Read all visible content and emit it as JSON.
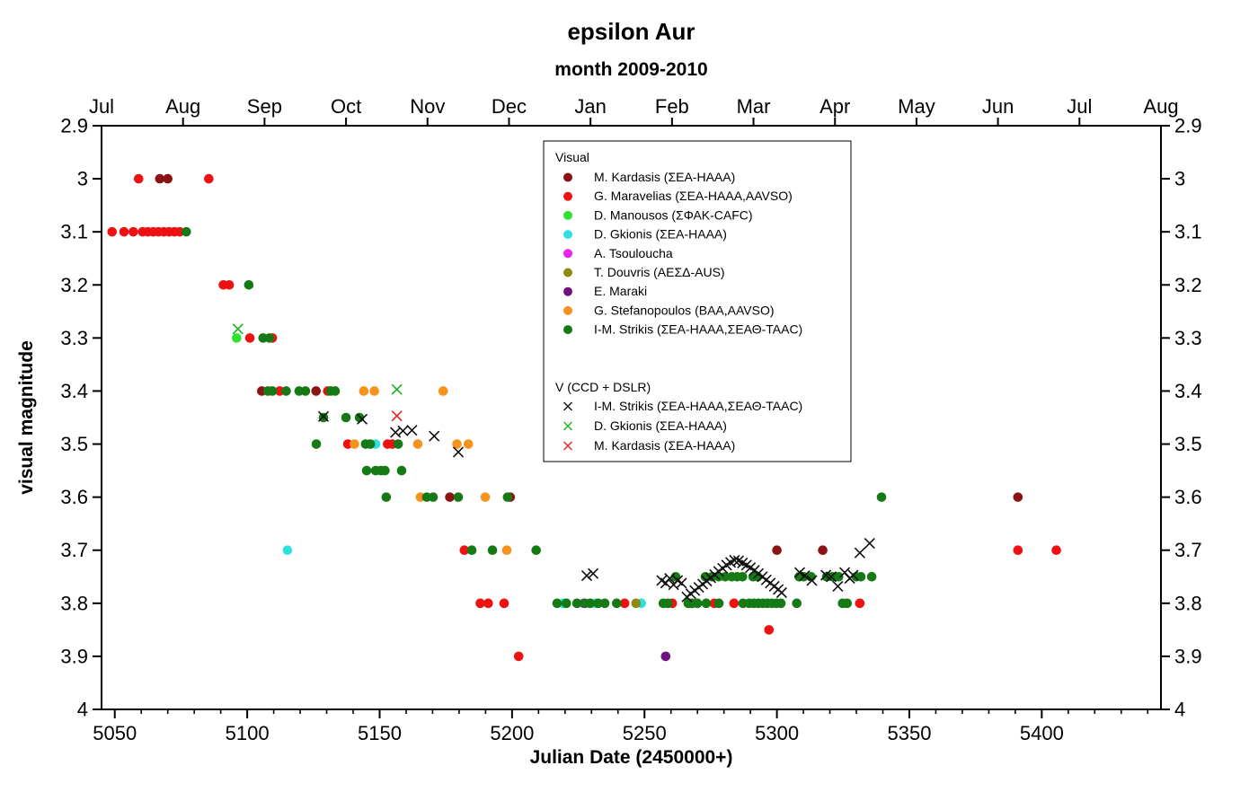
{
  "chart_data": {
    "type": "scatter",
    "title": "epsilon Aur",
    "subtitle": "month 2009-2010",
    "xlabel": "Julian Date (2450000+)",
    "ylabel": "visual magnitude",
    "x_axis": {
      "range": [
        5045,
        5445
      ],
      "tick_values": [
        5050,
        5100,
        5150,
        5200,
        5250,
        5300,
        5350,
        5400
      ],
      "tick_labels": [
        "5050",
        "5100",
        "5150",
        "5200",
        "5250",
        "5300",
        "5350",
        "5400"
      ],
      "minor_tick_step": 10
    },
    "y_axis": {
      "range": [
        2.9,
        4.0
      ],
      "tick_values": [
        2.9,
        3.0,
        3.1,
        3.2,
        3.3,
        3.4,
        3.5,
        3.6,
        3.7,
        3.8,
        3.9,
        4.0
      ],
      "tick_labels": [
        "2.9",
        "3",
        "3.1",
        "3.2",
        "3.3",
        "3.4",
        "3.5",
        "3.6",
        "3.7",
        "3.8",
        "3.9",
        "4"
      ],
      "mirrored_right": true
    },
    "top_axis": {
      "month_labels": [
        "Jul",
        "Aug",
        "Sep",
        "Oct",
        "Nov",
        "Dec",
        "Jan",
        "Feb",
        "Mar",
        "Apr",
        "May",
        "Jun",
        "Jul",
        "Aug"
      ]
    },
    "legend": {
      "section1_title": "Visual",
      "section2_title": "V (CCD + DSLR)"
    },
    "series": [
      {
        "label": "M. Kardasis (ΣΕΑ-HAAA)",
        "group": "visual",
        "marker": "circle",
        "color": "#8b1313",
        "points": [
          [
            5067,
            3.0
          ],
          [
            5070,
            3.0
          ],
          [
            5105.5,
            3.4
          ],
          [
            5126,
            3.4
          ],
          [
            5176.5,
            3.6
          ],
          [
            5199.3,
            3.6
          ],
          [
            5300,
            3.7
          ],
          [
            5317.3,
            3.7
          ],
          [
            5391,
            3.6
          ]
        ]
      },
      {
        "label": "G. Maravelias (ΣΕΑ-HAAA,AAVSO)",
        "group": "visual",
        "marker": "circle",
        "color": "#ee1111",
        "points": [
          [
            5059,
            3.0
          ],
          [
            5085.5,
            3.0
          ],
          [
            5049,
            3.1
          ],
          [
            5053.5,
            3.1
          ],
          [
            5057,
            3.1
          ],
          [
            5060.5,
            3.1
          ],
          [
            5062.5,
            3.1
          ],
          [
            5064.5,
            3.1
          ],
          [
            5066.5,
            3.1
          ],
          [
            5068.5,
            3.1
          ],
          [
            5070.5,
            3.1
          ],
          [
            5072.5,
            3.1
          ],
          [
            5074.5,
            3.1
          ],
          [
            5091,
            3.2
          ],
          [
            5093.2,
            3.2
          ],
          [
            5101,
            3.3
          ],
          [
            5109.5,
            3.3
          ],
          [
            5112.3,
            3.4
          ],
          [
            5130.4,
            3.4
          ],
          [
            5138,
            3.5
          ],
          [
            5153,
            3.5
          ],
          [
            5154.8,
            3.5
          ],
          [
            5182,
            3.7
          ],
          [
            5391,
            3.7
          ],
          [
            5405.5,
            3.7
          ],
          [
            5188,
            3.8
          ],
          [
            5191,
            3.8
          ],
          [
            5197,
            3.8
          ],
          [
            5242.5,
            3.8
          ],
          [
            5260.5,
            3.8
          ],
          [
            5276.4,
            3.8
          ],
          [
            5283.8,
            3.8
          ],
          [
            5331.3,
            3.8
          ],
          [
            5297,
            3.85
          ],
          [
            5202.5,
            3.9
          ]
        ]
      },
      {
        "label": "D. Manousos (ΣΦΑΚ-CAFC)",
        "group": "visual",
        "marker": "circle",
        "color": "#2fe22f",
        "points": [
          [
            5096,
            3.3
          ]
        ]
      },
      {
        "label": "D. Gkionis (ΣΕΑ-HAAA)",
        "group": "visual",
        "marker": "circle",
        "color": "#2ee0e0",
        "points": [
          [
            5115.2,
            3.7
          ],
          [
            5148.5,
            3.5
          ],
          [
            5219.3,
            3.8
          ],
          [
            5231.5,
            3.8
          ],
          [
            5248.8,
            3.8
          ]
        ]
      },
      {
        "label": "A. Tsouloucha",
        "group": "visual",
        "marker": "circle",
        "color": "#ee22ee",
        "points": [
          [
            5227,
            3.8
          ],
          [
            5267.5,
            3.8
          ]
        ]
      },
      {
        "label": "T. Douvris (ΑΕΣΔ-AUS)",
        "group": "visual",
        "marker": "circle",
        "color": "#8f8a0e",
        "points": [
          [
            5246.8,
            3.8
          ]
        ]
      },
      {
        "label": "E. Maraki",
        "group": "visual",
        "marker": "circle",
        "color": "#6f1280",
        "points": [
          [
            5258,
            3.9
          ]
        ]
      },
      {
        "label": "G. Stefanopoulos (BAA,AAVSO)",
        "group": "visual",
        "marker": "circle",
        "color": "#f6921e",
        "points": [
          [
            5140.5,
            3.5
          ],
          [
            5144,
            3.4
          ],
          [
            5148,
            3.4
          ],
          [
            5164.4,
            3.5
          ],
          [
            5165.4,
            3.6
          ],
          [
            5174,
            3.4
          ],
          [
            5179.2,
            3.5
          ],
          [
            5183.5,
            3.5
          ],
          [
            5189.9,
            3.6
          ],
          [
            5198,
            3.7
          ]
        ]
      },
      {
        "label": "I-M. Strikis (ΣΕΑ-HAAA,ΣΕΑΘ-TAAC)",
        "group": "visual",
        "marker": "circle",
        "color": "#157a15",
        "points": [
          [
            5077,
            3.1
          ],
          [
            5100.6,
            3.2
          ],
          [
            5106,
            3.3
          ],
          [
            5108.4,
            3.3
          ],
          [
            5107.8,
            3.4
          ],
          [
            5109.5,
            3.4
          ],
          [
            5114.7,
            3.4
          ],
          [
            5119.6,
            3.4
          ],
          [
            5122,
            3.4
          ],
          [
            5131.5,
            3.4
          ],
          [
            5133.2,
            3.4
          ],
          [
            5128.8,
            3.45
          ],
          [
            5137.3,
            3.45
          ],
          [
            5142.4,
            3.45
          ],
          [
            5126.1,
            3.5
          ],
          [
            5144.7,
            3.5
          ],
          [
            5146.5,
            3.5
          ],
          [
            5157,
            3.5
          ],
          [
            5145.1,
            3.55
          ],
          [
            5148.5,
            3.55
          ],
          [
            5150.5,
            3.55
          ],
          [
            5152,
            3.55
          ],
          [
            5158.3,
            3.55
          ],
          [
            5152.5,
            3.6
          ],
          [
            5167.8,
            3.6
          ],
          [
            5170.2,
            3.6
          ],
          [
            5179.7,
            3.6
          ],
          [
            5198.3,
            3.6
          ],
          [
            5339.5,
            3.6
          ],
          [
            5184.8,
            3.7
          ],
          [
            5192.6,
            3.7
          ],
          [
            5209.1,
            3.7
          ],
          [
            5261.8,
            3.75
          ],
          [
            5273,
            3.75
          ],
          [
            5275.5,
            3.75
          ],
          [
            5278,
            3.75
          ],
          [
            5280.5,
            3.75
          ],
          [
            5283,
            3.75
          ],
          [
            5285,
            3.75
          ],
          [
            5287,
            3.75
          ],
          [
            5291,
            3.75
          ],
          [
            5292.7,
            3.75
          ],
          [
            5308.4,
            3.75
          ],
          [
            5310.1,
            3.75
          ],
          [
            5312.9,
            3.75
          ],
          [
            5318.8,
            3.75
          ],
          [
            5321,
            3.75
          ],
          [
            5323.3,
            3.75
          ],
          [
            5330,
            3.75
          ],
          [
            5331.7,
            3.75
          ],
          [
            5335.8,
            3.75
          ],
          [
            5217,
            3.8
          ],
          [
            5220.5,
            3.8
          ],
          [
            5224.5,
            3.8
          ],
          [
            5227.5,
            3.8
          ],
          [
            5229.5,
            3.8
          ],
          [
            5232.5,
            3.8
          ],
          [
            5235,
            3.8
          ],
          [
            5239.5,
            3.8
          ],
          [
            5257.1,
            3.8
          ],
          [
            5258.8,
            3.8
          ],
          [
            5266.5,
            3.8
          ],
          [
            5268,
            3.8
          ],
          [
            5270,
            3.8
          ],
          [
            5273.3,
            3.8
          ],
          [
            5278.1,
            3.8
          ],
          [
            5287.2,
            3.8
          ],
          [
            5289.5,
            3.8
          ],
          [
            5291.3,
            3.8
          ],
          [
            5293,
            3.8
          ],
          [
            5294.7,
            3.8
          ],
          [
            5296.4,
            3.8
          ],
          [
            5298.1,
            3.8
          ],
          [
            5299.8,
            3.8
          ],
          [
            5301.5,
            3.8
          ],
          [
            5307.5,
            3.8
          ],
          [
            5324.8,
            3.8
          ],
          [
            5326.5,
            3.8
          ]
        ]
      },
      {
        "label": "I-M. Strikis (ΣΕΑ-HAAA,ΣΕΑΘ-TAAC)",
        "group": "ccd",
        "marker": "x",
        "color": "#111111",
        "points": [
          [
            5128.8,
            3.448
          ],
          [
            5143.4,
            3.453
          ],
          [
            5156,
            3.478
          ],
          [
            5158.8,
            3.475
          ],
          [
            5162.2,
            3.474
          ],
          [
            5170.6,
            3.485
          ],
          [
            5179.7,
            3.515
          ],
          [
            5228.2,
            3.748
          ],
          [
            5230.6,
            3.744
          ],
          [
            5256.5,
            3.757
          ],
          [
            5258,
            3.762
          ],
          [
            5259.5,
            3.753
          ],
          [
            5261,
            3.765
          ],
          [
            5262.5,
            3.757
          ],
          [
            5264,
            3.762
          ],
          [
            5266,
            3.788
          ],
          [
            5267.5,
            3.782
          ],
          [
            5269,
            3.776
          ],
          [
            5270.5,
            3.77
          ],
          [
            5272,
            3.764
          ],
          [
            5273.5,
            3.758
          ],
          [
            5275,
            3.752
          ],
          [
            5276.5,
            3.746
          ],
          [
            5278,
            3.74
          ],
          [
            5279.5,
            3.734
          ],
          [
            5281,
            3.728
          ],
          [
            5282.5,
            3.723
          ],
          [
            5284,
            3.719
          ],
          [
            5285.5,
            3.72
          ],
          [
            5287,
            3.724
          ],
          [
            5288.5,
            3.728
          ],
          [
            5290,
            3.733
          ],
          [
            5291.5,
            3.738
          ],
          [
            5293,
            3.744
          ],
          [
            5294.5,
            3.75
          ],
          [
            5296,
            3.756
          ],
          [
            5297.5,
            3.762
          ],
          [
            5299,
            3.768
          ],
          [
            5300.5,
            3.774
          ],
          [
            5301.8,
            3.78
          ],
          [
            5308.6,
            3.742
          ],
          [
            5310.5,
            3.748
          ],
          [
            5313.2,
            3.757
          ],
          [
            5318.5,
            3.747
          ],
          [
            5320.5,
            3.75
          ],
          [
            5323,
            3.768
          ],
          [
            5325.6,
            3.742
          ],
          [
            5327.5,
            3.753
          ],
          [
            5328.8,
            3.747
          ],
          [
            5331.3,
            3.705
          ],
          [
            5335,
            3.687
          ]
        ]
      },
      {
        "label": "D. Gkionis (ΣΕΑ-HAAA)",
        "group": "ccd",
        "marker": "x",
        "color": "#1faf1f",
        "points": [
          [
            5096.5,
            3.283
          ],
          [
            5156.5,
            3.397
          ]
        ]
      },
      {
        "label": "M. Kardasis (ΣΕΑ-HAAA)",
        "group": "ccd",
        "marker": "x",
        "color": "#ee2222",
        "points": [
          [
            5156.5,
            3.447
          ]
        ]
      }
    ]
  }
}
